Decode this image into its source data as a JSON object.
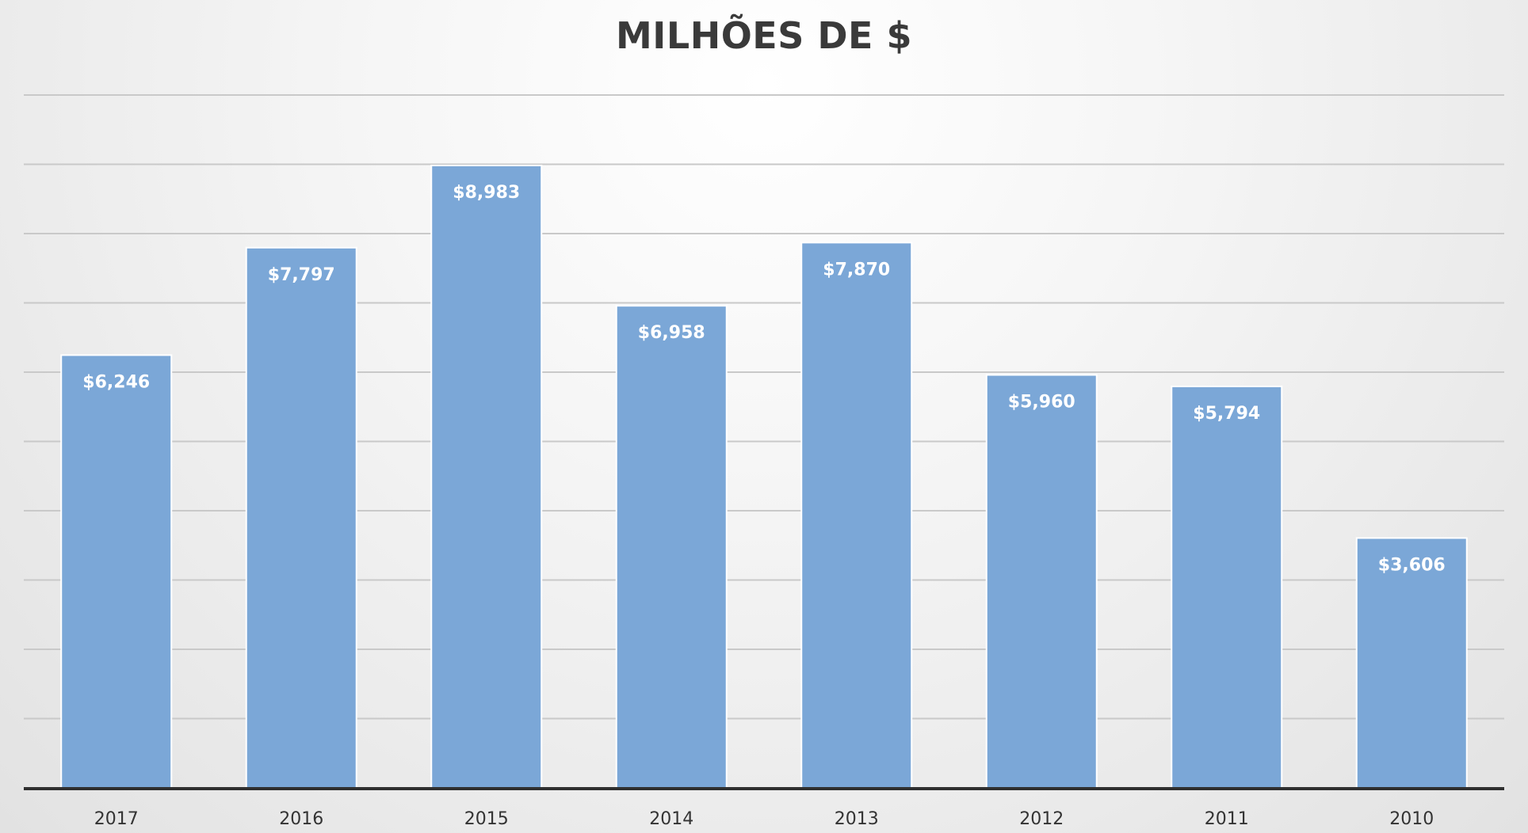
{
  "chart_data": {
    "type": "bar",
    "title": "MILHÕES DE $",
    "categories": [
      "2017",
      "2016",
      "2015",
      "2014",
      "2013",
      "2012",
      "2011",
      "2010"
    ],
    "values": [
      6246,
      7797,
      8983,
      6958,
      7870,
      5960,
      5794,
      3606
    ],
    "data_labels": [
      "$6,246",
      "$7,797",
      "$8,983",
      "$6,958",
      "$7,870",
      "$5,960",
      "$5,794",
      "$3,606"
    ],
    "xlabel": "",
    "ylabel": "",
    "ylim": [
      0,
      10000
    ],
    "grid": true,
    "legend": "none",
    "bar_color": "#7ba7d7"
  }
}
